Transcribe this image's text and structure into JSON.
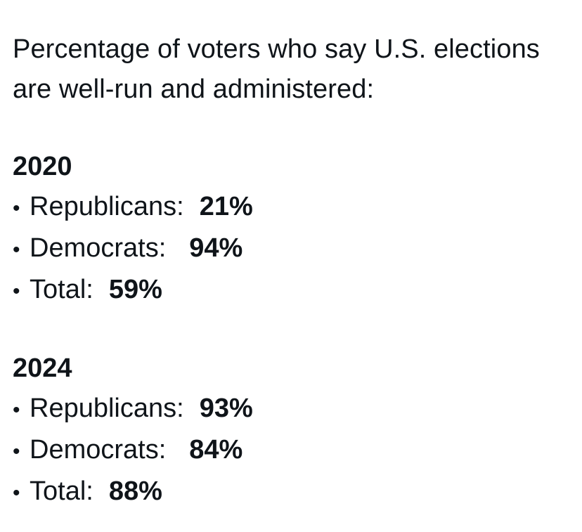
{
  "post": {
    "headline": "Percentage of voters who say U.S. elections are well-run and administered:",
    "sections": [
      {
        "year": "2020",
        "rows": [
          {
            "bullet": "•",
            "label": "Republicans:",
            "value": "21%"
          },
          {
            "bullet": "•",
            "label": "Democrats:",
            "value": "94%"
          },
          {
            "bullet": "•",
            "label": "Total:",
            "value": "59%"
          }
        ]
      },
      {
        "year": "2024",
        "rows": [
          {
            "bullet": "•",
            "label": "Republicans:",
            "value": "93%"
          },
          {
            "bullet": "•",
            "label": "Democrats:",
            "value": "84%"
          },
          {
            "bullet": "•",
            "label": "Total:",
            "value": "88%"
          }
        ]
      }
    ]
  }
}
